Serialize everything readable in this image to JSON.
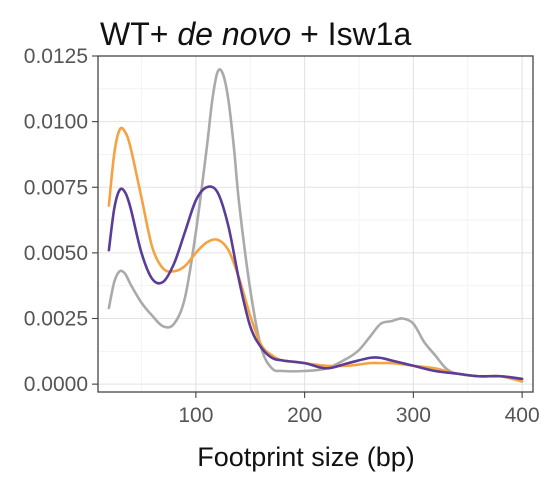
{
  "chart_data": {
    "type": "line",
    "title_parts": [
      {
        "text": "WT+ ",
        "italic": false
      },
      {
        "text": "de novo",
        "italic": true
      },
      {
        "text": " + Isw1a",
        "italic": false
      }
    ],
    "xlabel": "Footprint size (bp)",
    "ylabel": "",
    "xlim": [
      10,
      410
    ],
    "ylim": [
      -0.0003,
      0.0125
    ],
    "x_ticks": [
      100,
      200,
      300,
      400
    ],
    "x_tick_labels": [
      "100",
      "200",
      "300",
      "400"
    ],
    "y_ticks": [
      0.0,
      0.0025,
      0.005,
      0.0075,
      0.01,
      0.0125
    ],
    "y_tick_labels": [
      "0.0000",
      "0.0025",
      "0.0050",
      "0.0075",
      "0.0100",
      "0.0125"
    ],
    "grid": true,
    "legend": "none",
    "series": [
      {
        "color": "#aaaaaa",
        "x": [
          20,
          25,
          30,
          35,
          40,
          50,
          60,
          70,
          80,
          90,
          100,
          110,
          115,
          120,
          125,
          130,
          135,
          140,
          150,
          160,
          170,
          180,
          200,
          220,
          240,
          250,
          260,
          270,
          280,
          290,
          300,
          310,
          320,
          330,
          340,
          360,
          380,
          400
        ],
        "y": [
          0.0029,
          0.0039,
          0.0043,
          0.0042,
          0.0038,
          0.0031,
          0.0026,
          0.0022,
          0.0023,
          0.0033,
          0.0058,
          0.009,
          0.0108,
          0.0119,
          0.0118,
          0.0108,
          0.009,
          0.0068,
          0.0036,
          0.0014,
          0.0006,
          0.0005,
          0.0005,
          0.0006,
          0.001,
          0.0013,
          0.0018,
          0.0023,
          0.0024,
          0.0025,
          0.0023,
          0.0016,
          0.0011,
          0.0006,
          0.0004,
          0.0003,
          0.0003,
          0.0002
        ]
      },
      {
        "color": "#f5a242",
        "x": [
          20,
          25,
          30,
          35,
          40,
          50,
          60,
          70,
          80,
          90,
          100,
          110,
          120,
          130,
          140,
          150,
          160,
          170,
          180,
          200,
          220,
          240,
          260,
          270,
          280,
          300,
          320,
          340,
          360,
          380,
          400
        ],
        "y": [
          0.0068,
          0.0088,
          0.0097,
          0.0096,
          0.009,
          0.0071,
          0.0052,
          0.0044,
          0.0043,
          0.0045,
          0.005,
          0.0054,
          0.0055,
          0.0051,
          0.004,
          0.0026,
          0.0015,
          0.0011,
          0.0009,
          0.0008,
          0.0007,
          0.0007,
          0.0008,
          0.0008,
          0.0008,
          0.0007,
          0.0006,
          0.0004,
          0.0003,
          0.0003,
          0.0001
        ]
      },
      {
        "color": "#5a3c99",
        "x": [
          20,
          25,
          30,
          35,
          40,
          50,
          60,
          70,
          80,
          90,
          100,
          110,
          120,
          130,
          140,
          150,
          160,
          170,
          180,
          200,
          220,
          240,
          260,
          270,
          280,
          300,
          320,
          340,
          360,
          380,
          400
        ],
        "y": [
          0.0051,
          0.0067,
          0.0074,
          0.0073,
          0.0067,
          0.005,
          0.004,
          0.0039,
          0.0046,
          0.0058,
          0.007,
          0.0075,
          0.0073,
          0.006,
          0.0039,
          0.0022,
          0.0014,
          0.001,
          0.0009,
          0.0008,
          0.0006,
          0.0008,
          0.001,
          0.001,
          0.0009,
          0.0007,
          0.0005,
          0.0004,
          0.0003,
          0.0003,
          0.0002
        ]
      }
    ]
  }
}
